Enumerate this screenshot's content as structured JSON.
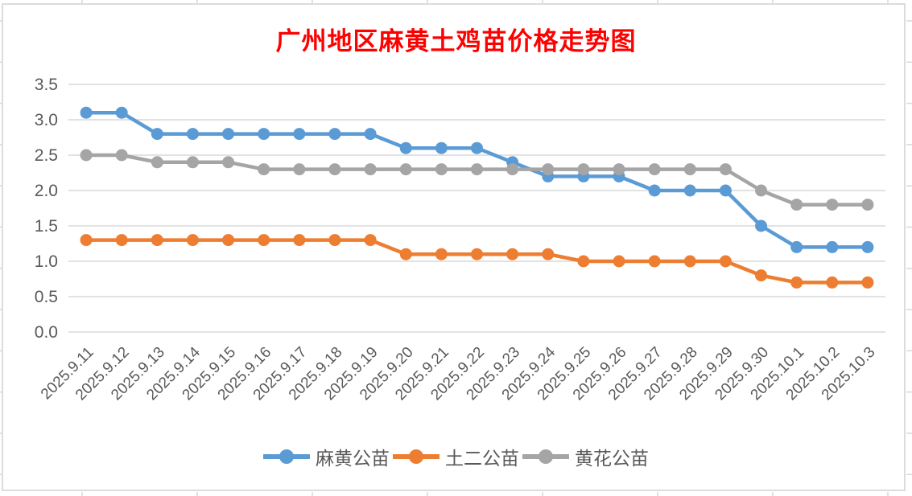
{
  "chart_data": {
    "type": "line",
    "title": "广州地区麻黄土鸡苗价格走势图",
    "title_color": "#FF0000",
    "categories": [
      "2025.9.11",
      "2025.9.12",
      "2025.9.13",
      "2025.9.14",
      "2025.9.15",
      "2025.9.16",
      "2025.9.17",
      "2025.9.18",
      "2025.9.19",
      "2025.9.20",
      "2025.9.21",
      "2025.9.22",
      "2025.9.23",
      "2025.9.24",
      "2025.9.25",
      "2025.9.26",
      "2025.9.27",
      "2025.9.28",
      "2025.9.29",
      "2025.9.30",
      "2025.10.1",
      "2025.10.2",
      "2025.10.3"
    ],
    "series": [
      {
        "name": "麻黄公苗",
        "color": "#5B9BD5",
        "values": [
          3.1,
          3.1,
          2.8,
          2.8,
          2.8,
          2.8,
          2.8,
          2.8,
          2.8,
          2.6,
          2.6,
          2.6,
          2.4,
          2.2,
          2.2,
          2.2,
          2.0,
          2.0,
          2.0,
          1.5,
          1.2,
          1.2,
          1.2
        ]
      },
      {
        "name": "土二公苗",
        "color": "#ED7D31",
        "values": [
          1.3,
          1.3,
          1.3,
          1.3,
          1.3,
          1.3,
          1.3,
          1.3,
          1.3,
          1.1,
          1.1,
          1.1,
          1.1,
          1.1,
          1.0,
          1.0,
          1.0,
          1.0,
          1.0,
          0.8,
          0.7,
          0.7,
          0.7
        ]
      },
      {
        "name": "黄花公苗",
        "color": "#A5A5A5",
        "values": [
          2.5,
          2.5,
          2.4,
          2.4,
          2.4,
          2.3,
          2.3,
          2.3,
          2.3,
          2.3,
          2.3,
          2.3,
          2.3,
          2.3,
          2.3,
          2.3,
          2.3,
          2.3,
          2.3,
          2.0,
          1.8,
          1.8,
          1.8
        ]
      }
    ],
    "y_ticks": [
      3.5,
      3.0,
      2.5,
      2.0,
      1.5,
      1.0,
      0.5,
      0.0
    ],
    "ylim": [
      0.0,
      3.5
    ],
    "grid": true,
    "legend_position": "bottom",
    "axis_text_color": "#595959",
    "gridline_color": "#D9D9D9"
  }
}
